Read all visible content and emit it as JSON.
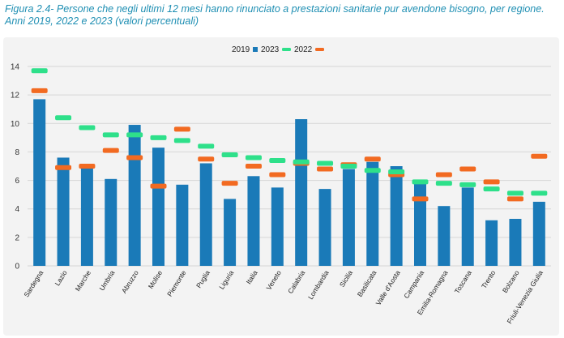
{
  "figure": {
    "title": "Figura 2.4- Persone che negli ultimi 12 mesi hanno rinunciato a prestazioni sanitarie pur avendone bisogno, per regione. Anni 2019, 2022 e 2023 (valori percentuali)"
  },
  "colors": {
    "bar_2023": "#1a7ab8",
    "marker_2022": "#f26a21",
    "marker_2019": "#2ee08a",
    "grid": "#d6d6d6",
    "plot_bg": "#f3f3f3"
  },
  "chart_data": {
    "type": "bar",
    "title": "",
    "xlabel": "",
    "ylabel": "",
    "ylim": [
      0,
      14
    ],
    "yticks": [
      0,
      2,
      4,
      6,
      8,
      10,
      12,
      14
    ],
    "grid": true,
    "legend_position": "top",
    "legend_labels": [
      "2019",
      "2023",
      "2022"
    ],
    "categories": [
      "Sardegna",
      "Lazio",
      "Marche",
      "Umbria",
      "Abruzzo",
      "Molise",
      "Piemonte",
      "Puglia",
      "Liguria",
      "Italia",
      "Veneto",
      "Calabria",
      "Lombardia",
      "Sicilia",
      "Basilicata",
      "Valle d'Aosta",
      "Campania",
      "Emilia-Romagna",
      "Toscana",
      "Trento",
      "Bolzano",
      "Friuli-Venezia Giulia"
    ],
    "series": [
      {
        "name": "2023",
        "kind": "bar",
        "values": [
          11.7,
          7.6,
          6.9,
          6.1,
          9.9,
          8.3,
          5.7,
          7.2,
          4.7,
          6.3,
          5.5,
          10.3,
          5.4,
          6.8,
          7.3,
          7.0,
          5.8,
          4.2,
          5.5,
          3.2,
          3.3,
          4.5
        ]
      },
      {
        "name": "2022",
        "kind": "marker",
        "values": [
          12.3,
          6.9,
          7.0,
          8.1,
          7.6,
          5.6,
          9.6,
          7.5,
          5.8,
          7.0,
          6.4,
          7.2,
          6.8,
          7.1,
          7.5,
          6.4,
          4.7,
          6.4,
          6.8,
          5.9,
          4.7,
          7.7
        ]
      },
      {
        "name": "2019",
        "kind": "marker",
        "values": [
          13.7,
          10.4,
          9.7,
          9.2,
          9.2,
          9.0,
          8.8,
          8.4,
          7.8,
          7.6,
          7.4,
          7.3,
          7.2,
          7.0,
          6.7,
          6.6,
          5.9,
          5.8,
          5.7,
          5.4,
          5.1,
          5.1
        ]
      }
    ]
  }
}
